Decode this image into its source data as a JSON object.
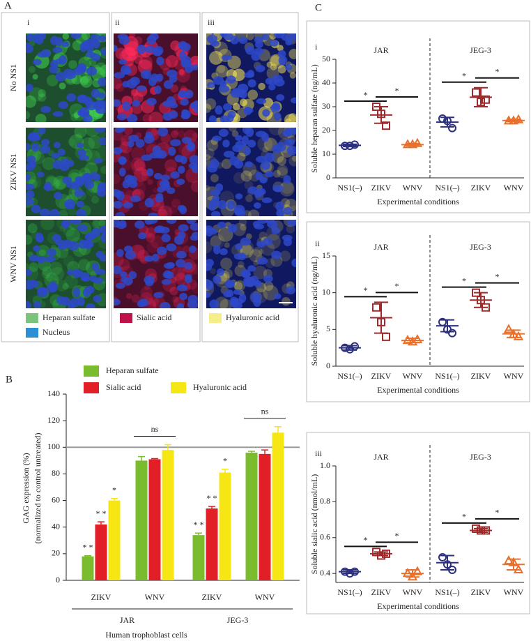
{
  "panel_labels": [
    "A",
    "B",
    "C"
  ],
  "panel_a": {
    "columns": [
      "i",
      "ii",
      "iii"
    ],
    "rows": [
      "No NS1",
      "ZIKV NS1",
      "WNV NS1"
    ],
    "legend": [
      {
        "label": "Heparan sulfate",
        "color": "#7cc47c"
      },
      {
        "label": "Nucleus",
        "color": "#2a8fd4"
      },
      {
        "label": "Sialic acid",
        "color": "#c0134a"
      },
      {
        "label": "Hyaluronic acid",
        "color": "#f5ee8a"
      }
    ]
  },
  "chart_data": [
    {
      "type": "bar",
      "y_title": [
        "GAG expression (%)",
        "(normalized to control untreated)"
      ],
      "x_title": "Human trophoblast cells",
      "categories": [
        "ZIKV",
        "WNV",
        "ZIKV",
        "WNV"
      ],
      "groups": [
        "JAR",
        "JEG-3"
      ],
      "series": [
        {
          "name": "Heparan sulfate",
          "color": "#79bd2f",
          "values": [
            18,
            90,
            34,
            96
          ],
          "errors": [
            0.5,
            3,
            1.5,
            1
          ]
        },
        {
          "name": "Sialic acid",
          "color": "#e21f26",
          "values": [
            42,
            91,
            54,
            95
          ],
          "errors": [
            2,
            0.5,
            1.5,
            3
          ]
        },
        {
          "name": "Hyaluronic acid",
          "color": "#f5e614",
          "values": [
            60,
            98,
            81,
            111
          ],
          "errors": [
            1.5,
            4,
            2.5,
            4.5
          ]
        }
      ],
      "ylim": [
        0,
        140
      ],
      "yticks": [
        0,
        20,
        40,
        60,
        80,
        100,
        120,
        140
      ],
      "reference_line": 100,
      "annotations": [
        "* *",
        "* *",
        "*",
        "* *",
        "* *",
        "*",
        "ns",
        "ns"
      ]
    },
    {
      "type": "dot",
      "label": "i",
      "y_title": "Soluble heparan sulfate (ng/mL)",
      "x_title": "Experimental conditions",
      "categories": [
        "NS1(–)",
        "ZIKV",
        "WNV",
        "NS1(–)",
        "ZIKV",
        "WNV"
      ],
      "groups": [
        "JAR",
        "JEG-3"
      ],
      "colors": [
        "#2b2f7e",
        "#9e2a2b",
        "#e8702a",
        "#2b2f7e",
        "#9e2a2b",
        "#e8702a"
      ],
      "markers": [
        "circle",
        "square",
        "triangle",
        "circle",
        "square",
        "triangle"
      ],
      "points": [
        [
          13.5,
          13.5,
          14
        ],
        [
          30,
          27,
          22
        ],
        [
          14,
          14,
          14.5
        ],
        [
          25,
          24,
          21
        ],
        [
          36,
          32,
          33
        ],
        [
          24,
          24,
          24.5
        ]
      ],
      "means": [
        13.7,
        26.5,
        14,
        23.5,
        34,
        24.2
      ],
      "sd": [
        0.5,
        3.5,
        0.5,
        2,
        4,
        0.5
      ],
      "ylim": [
        0,
        50
      ],
      "yticks": [
        0,
        10,
        20,
        30,
        40,
        50
      ],
      "annotations": [
        "*",
        "*",
        "*",
        "*"
      ]
    },
    {
      "type": "dot",
      "label": "ii",
      "y_title": "Soluble hyaluronic acid (ng/mL)",
      "x_title": "Experimental conditions",
      "categories": [
        "NS1(–)",
        "ZIKV",
        "WNV",
        "NS1(–)",
        "ZIKV",
        "WNV"
      ],
      "groups": [
        "JAR",
        "JEG-3"
      ],
      "colors": [
        "#2b2f7e",
        "#9e2a2b",
        "#e8702a",
        "#2b2f7e",
        "#9e2a2b",
        "#e8702a"
      ],
      "markers": [
        "circle",
        "square",
        "triangle",
        "circle",
        "square",
        "triangle"
      ],
      "points": [
        [
          2.5,
          2.3,
          2.7
        ],
        [
          8,
          6,
          4
        ],
        [
          3.5,
          3.3,
          3.6
        ],
        [
          6,
          5,
          4.5
        ],
        [
          10,
          9,
          8
        ],
        [
          5,
          4.3,
          4
        ]
      ],
      "means": [
        2.5,
        6.6,
        3.5,
        5.5,
        9,
        4.4
      ],
      "sd": [
        0.3,
        2.1,
        0.3,
        0.8,
        1,
        0.5
      ],
      "ylim": [
        0,
        15
      ],
      "yticks": [
        0,
        5,
        10,
        15
      ],
      "annotations": [
        "*",
        "*",
        "*",
        "*"
      ]
    },
    {
      "type": "dot",
      "label": "iii",
      "y_title": "Soluble sialic acid (nmol/mL)",
      "x_title": "Experimental conditions",
      "categories": [
        "NS1(–)",
        "ZIKV",
        "WNV",
        "NS1(–)",
        "ZIKV",
        "WNV"
      ],
      "groups": [
        "JAR",
        "JEG-3"
      ],
      "colors": [
        "#2b2f7e",
        "#9e2a2b",
        "#e8702a",
        "#2b2f7e",
        "#9e2a2b",
        "#e8702a"
      ],
      "markers": [
        "circle",
        "square",
        "triangle",
        "circle",
        "square",
        "triangle"
      ],
      "points": [
        [
          0.41,
          0.4,
          0.41
        ],
        [
          0.52,
          0.5,
          0.51
        ],
        [
          0.4,
          0.38,
          0.41
        ],
        [
          0.49,
          0.45,
          0.42
        ],
        [
          0.65,
          0.64,
          0.64
        ],
        [
          0.47,
          0.46,
          0.42
        ]
      ],
      "means": [
        0.41,
        0.51,
        0.4,
        0.46,
        0.64,
        0.45
      ],
      "sd": [
        0.01,
        0.01,
        0.02,
        0.04,
        0.01,
        0.03
      ],
      "ylim": [
        0.35,
        1
      ],
      "yticks": [
        0.4,
        0.6,
        0.8,
        {
          "value": 1,
          "label": "1.0"
        }
      ],
      "annotations": [
        "*",
        "*",
        "*",
        "*"
      ]
    }
  ]
}
